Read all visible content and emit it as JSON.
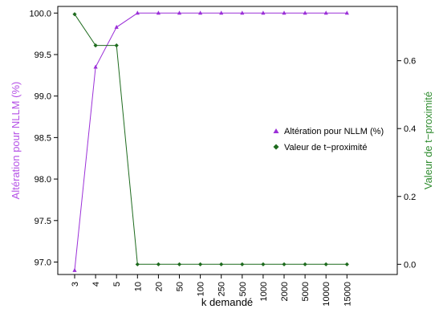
{
  "chart_data": {
    "type": "line",
    "categories": [
      "3",
      "4",
      "5",
      "10",
      "20",
      "50",
      "100",
      "250",
      "500",
      "1000",
      "2000",
      "5000",
      "10000",
      "15000"
    ],
    "xlabel": "k demandé",
    "ylabel_left": "Altération pour NLLM (%)",
    "ylabel_right": "Valeur de t−proximité",
    "ylim_left": [
      96.85,
      100.08
    ],
    "ylim_right": [
      -0.03,
      0.76
    ],
    "yticks_left": [
      "97.0",
      "97.5",
      "98.0",
      "98.5",
      "99.0",
      "99.5",
      "100.0"
    ],
    "yticks_right": [
      "0.0",
      "0.2",
      "0.4",
      "0.6"
    ],
    "grid": false,
    "legend_position": "right-center",
    "series": [
      {
        "name": "Altération pour NLLM (%)",
        "axis": "left",
        "color": "#9b30d8",
        "marker": "triangle",
        "values": [
          96.9,
          99.35,
          99.83,
          100.0,
          100.0,
          100.0,
          100.0,
          100.0,
          100.0,
          100.0,
          100.0,
          100.0,
          100.0,
          100.0
        ]
      },
      {
        "name": "Valeur de t−proximité",
        "axis": "right",
        "color": "#1e6b1e",
        "marker": "diamond",
        "values": [
          0.737,
          0.645,
          0.645,
          0.0,
          0.0,
          0.0,
          0.0,
          0.0,
          0.0,
          0.0,
          0.0,
          0.0,
          0.0,
          0.0
        ]
      }
    ]
  }
}
